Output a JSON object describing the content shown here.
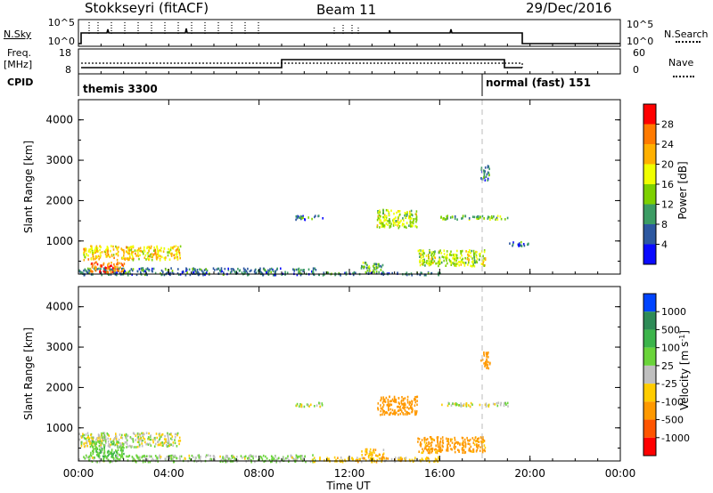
{
  "header": {
    "station": "Stokkseyri (fitACF)",
    "beam": "Beam 11",
    "date": "29/Dec/2016"
  },
  "strip": {
    "nsky_label": "N.Sky",
    "nsky_ticks": [
      "10^5",
      "10^0"
    ],
    "nsearch_label": "N.Search",
    "nsearch_ticks": [
      "10^5",
      "10^0"
    ],
    "freq_label_1": "Freq.",
    "freq_label_2": "[MHz]",
    "freq_ticks": [
      "18",
      "8"
    ],
    "nave_label": "Nave",
    "nave_ticks": [
      "60",
      "0"
    ],
    "cpid_label": "CPID",
    "cpid_segments": [
      {
        "text": "themis 3300",
        "start_hour": 0
      },
      {
        "text": "normal (fast) 151",
        "start_hour": 18.0
      }
    ]
  },
  "chart_data": [
    {
      "type": "heatmap",
      "panel": "power",
      "ylabel": "Slant Range [km]",
      "xlabel": "",
      "x_ticks": [
        "00:00",
        "04:00",
        "08:00",
        "12:00",
        "16:00",
        "20:00",
        "00:00"
      ],
      "x_range_hours": [
        0,
        24
      ],
      "y_ticks": [
        1000,
        2000,
        3000,
        4000
      ],
      "y_range_km": [
        180,
        4500
      ],
      "colorbar_label": "Power [dB]",
      "colorbar_ticks": [
        "28",
        "24",
        "20",
        "16",
        "12",
        "8",
        "4"
      ],
      "colorbar_colors": [
        "#ff0000",
        "#ff7a00",
        "#ffb000",
        "#f0ff00",
        "#7dd000",
        "#3c9c64",
        "#2d58a0",
        "#0a0aff"
      ],
      "mode_change_hour": 18.0,
      "patches": [
        {
          "t": [
            0.2,
            4.5
          ],
          "r": [
            550,
            900
          ],
          "level": 20
        },
        {
          "t": [
            0.0,
            10.5
          ],
          "r": [
            180,
            350
          ],
          "level": 8
        },
        {
          "t": [
            0.5,
            2.0
          ],
          "r": [
            250,
            500
          ],
          "level": 26
        },
        {
          "t": [
            13.2,
            15.0
          ],
          "r": [
            1350,
            1800
          ],
          "level": 16
        },
        {
          "t": [
            15.0,
            18.0
          ],
          "r": [
            400,
            800
          ],
          "level": 16
        },
        {
          "t": [
            16.0,
            19.0
          ],
          "r": [
            1550,
            1650
          ],
          "level": 12
        },
        {
          "t": [
            10.3,
            16.0
          ],
          "r": [
            180,
            250
          ],
          "level": 8
        },
        {
          "t": [
            9.6,
            10.8
          ],
          "r": [
            1550,
            1650
          ],
          "level": 8
        },
        {
          "t": [
            17.8,
            18.2
          ],
          "r": [
            2500,
            2900
          ],
          "level": 8
        },
        {
          "t": [
            19.0,
            20.0
          ],
          "r": [
            900,
            1000
          ],
          "level": 8
        },
        {
          "t": [
            12.5,
            13.5
          ],
          "r": [
            250,
            500
          ],
          "level": 12
        }
      ]
    },
    {
      "type": "heatmap",
      "panel": "velocity",
      "ylabel": "Slant Range [km]",
      "xlabel": "Time UT",
      "x_ticks": [
        "00:00",
        "04:00",
        "08:00",
        "12:00",
        "16:00",
        "20:00",
        "00:00"
      ],
      "x_range_hours": [
        0,
        24
      ],
      "y_ticks": [
        1000,
        2000,
        3000,
        4000
      ],
      "y_range_km": [
        180,
        4500
      ],
      "colorbar_label": "Velocity [m s^-1]",
      "colorbar_ticks": [
        "1000",
        "500",
        "100",
        "25",
        "-25",
        "-100",
        "-500",
        "-1000"
      ],
      "colorbar_colors": [
        "#0044ff",
        "#2e8b57",
        "#3cb44b",
        "#6ad43a",
        "#bfbfbf",
        "#ffcc00",
        "#ff9900",
        "#ff5500",
        "#ff0000"
      ],
      "mode_change_hour": 18.0,
      "patches": [
        {
          "t": [
            0.0,
            4.5
          ],
          "r": [
            550,
            900
          ],
          "v": 0
        },
        {
          "t": [
            0.0,
            10.5
          ],
          "r": [
            180,
            350
          ],
          "v": 30
        },
        {
          "t": [
            0.5,
            2.0
          ],
          "r": [
            300,
            700
          ],
          "v": 80
        },
        {
          "t": [
            13.2,
            15.0
          ],
          "r": [
            1350,
            1800
          ],
          "v": -400
        },
        {
          "t": [
            15.0,
            18.0
          ],
          "r": [
            400,
            800
          ],
          "v": -150
        },
        {
          "t": [
            16.0,
            19.0
          ],
          "r": [
            1550,
            1650
          ],
          "v": 0
        },
        {
          "t": [
            9.6,
            10.8
          ],
          "r": [
            1550,
            1650
          ],
          "v": 0
        },
        {
          "t": [
            17.8,
            18.2
          ],
          "r": [
            2500,
            2900
          ],
          "v": -400
        },
        {
          "t": [
            10.3,
            16.0
          ],
          "r": [
            180,
            300
          ],
          "v": -60
        },
        {
          "t": [
            12.5,
            13.5
          ],
          "r": [
            250,
            500
          ],
          "v": -80
        }
      ]
    }
  ]
}
